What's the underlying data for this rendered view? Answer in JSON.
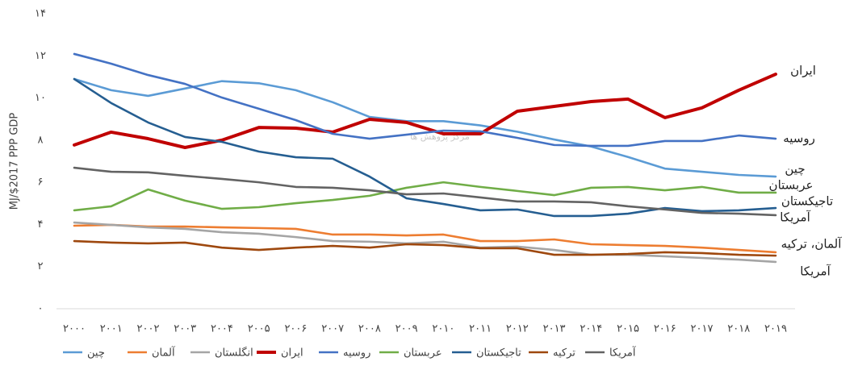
{
  "chart_data": {
    "type": "line",
    "y_label": "MJ/$2017 PPP GDP",
    "categories": [
      "۲۰۰۰",
      "۲۰۰۱",
      "۲۰۰۲",
      "۲۰۰۳",
      "۲۰۰۴",
      "۲۰۰۵",
      "۲۰۰۶",
      "۲۰۰۷",
      "۲۰۰۸",
      "۲۰۰۹",
      "۲۰۱۰",
      "۲۰۱۱",
      "۲۰۱۲",
      "۲۰۱۳",
      "۲۰۱۴",
      "۲۰۱۵",
      "۲۰۱۶",
      "۲۰۱۷",
      "۲۰۱۸",
      "۲۰۱۹"
    ],
    "ylim": [
      0,
      14
    ],
    "yticks": [
      {
        "value": 0,
        "label": "۰"
      },
      {
        "value": 2,
        "label": "۲"
      },
      {
        "value": 4,
        "label": "۴"
      },
      {
        "value": 6,
        "label": "۶"
      },
      {
        "value": 8,
        "label": "۸"
      },
      {
        "value": 10,
        "label": "۱۰"
      },
      {
        "value": 12,
        "label": "۱۲"
      },
      {
        "value": 14,
        "label": "۱۴"
      }
    ],
    "grid": false,
    "legend": "bottom",
    "watermark": "مرکز پژوهش ها",
    "series": [
      {
        "name": "چین",
        "color": "#5b9bd5",
        "values": [
          10.9,
          10.37,
          10.1,
          10.45,
          10.8,
          10.7,
          10.37,
          9.8,
          9.1,
          8.9,
          8.9,
          8.7,
          8.4,
          8.03,
          7.7,
          7.2,
          6.65,
          6.5,
          6.35,
          6.27
        ]
      },
      {
        "name": "آلمان",
        "color": "#ed7d31",
        "values": [
          3.94,
          3.98,
          3.9,
          3.9,
          3.86,
          3.83,
          3.79,
          3.52,
          3.52,
          3.48,
          3.52,
          3.21,
          3.21,
          3.29,
          3.06,
          3.02,
          2.98,
          2.9,
          2.79,
          2.68
        ]
      },
      {
        "name": "انگلستان",
        "color": "#a5a5a5",
        "values": [
          4.09,
          3.98,
          3.86,
          3.79,
          3.63,
          3.56,
          3.4,
          3.21,
          3.18,
          3.1,
          3.18,
          2.9,
          2.95,
          2.79,
          2.56,
          2.56,
          2.49,
          2.41,
          2.33,
          2.22
        ]
      },
      {
        "name": "ایران",
        "color": "#c00000",
        "values": [
          7.77,
          8.38,
          8.07,
          7.65,
          8.0,
          8.6,
          8.57,
          8.38,
          8.99,
          8.84,
          8.3,
          8.3,
          9.37,
          9.6,
          9.83,
          9.95,
          9.07,
          9.53,
          10.37,
          11.13
        ]
      },
      {
        "name": "روسیه",
        "color": "#4472c4",
        "values": [
          12.09,
          11.63,
          11.09,
          10.67,
          10.02,
          9.49,
          8.95,
          8.3,
          8.07,
          8.26,
          8.45,
          8.42,
          8.11,
          7.77,
          7.73,
          7.73,
          7.96,
          7.96,
          8.22,
          8.07
        ]
      },
      {
        "name": "عربستان",
        "color": "#70ad47",
        "values": [
          4.67,
          4.86,
          5.66,
          5.13,
          4.74,
          4.82,
          5.01,
          5.16,
          5.36,
          5.74,
          6.0,
          5.78,
          5.59,
          5.39,
          5.74,
          5.78,
          5.62,
          5.78,
          5.51,
          5.51
        ]
      },
      {
        "name": "تاجیکستان",
        "color": "#255e91",
        "values": [
          10.9,
          9.76,
          8.84,
          8.15,
          7.92,
          7.46,
          7.19,
          7.12,
          6.27,
          5.24,
          4.97,
          4.67,
          4.71,
          4.4,
          4.4,
          4.51,
          4.78,
          4.63,
          4.67,
          4.78
        ]
      },
      {
        "name": "ترکیه",
        "color": "#9e480e",
        "values": [
          3.21,
          3.14,
          3.1,
          3.14,
          2.9,
          2.79,
          2.9,
          2.98,
          2.9,
          3.06,
          3.02,
          2.87,
          2.87,
          2.56,
          2.56,
          2.6,
          2.68,
          2.64,
          2.56,
          2.52
        ]
      },
      {
        "name": "آمریکا",
        "color": "#636363",
        "values": [
          6.69,
          6.5,
          6.47,
          6.31,
          6.16,
          6.0,
          5.78,
          5.74,
          5.62,
          5.43,
          5.47,
          5.28,
          5.09,
          5.09,
          5.05,
          4.86,
          4.71,
          4.55,
          4.51,
          4.44
        ]
      }
    ],
    "annotations": [
      "ایران",
      "روسیه",
      "چین",
      "عربستان",
      "تاجیکستان",
      "آمریکا",
      "آلمان، ترکیه",
      "آمریکا"
    ]
  }
}
